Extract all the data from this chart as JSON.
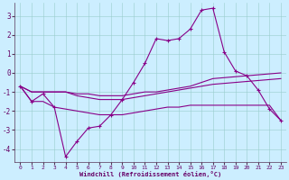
{
  "xlabel": "Windchill (Refroidissement éolien,°C)",
  "bg_color": "#cceeff",
  "line_color": "#880088",
  "grid_color": "#aaddcc",
  "xlim": [
    -0.5,
    23.5
  ],
  "ylim": [
    -4.7,
    3.7
  ],
  "yticks": [
    -4,
    -3,
    -2,
    -1,
    0,
    1,
    2,
    3
  ],
  "xticks": [
    0,
    1,
    2,
    3,
    4,
    5,
    6,
    7,
    8,
    9,
    10,
    11,
    12,
    13,
    14,
    15,
    16,
    17,
    18,
    19,
    20,
    21,
    22,
    23
  ],
  "line1_x": [
    0,
    1,
    2,
    3,
    4,
    5,
    6,
    7,
    8,
    9,
    10,
    11,
    12,
    13,
    14,
    15,
    16,
    17,
    18,
    19,
    20,
    21,
    22,
    23
  ],
  "line1_y": [
    -0.7,
    -1.5,
    -1.1,
    -1.8,
    -4.4,
    -3.6,
    -2.9,
    -2.8,
    -2.2,
    -1.4,
    -0.5,
    0.5,
    1.8,
    1.7,
    1.8,
    2.3,
    3.3,
    3.4,
    1.1,
    0.1,
    -0.15,
    -0.9,
    -1.9,
    -2.5
  ],
  "line2_x": [
    0,
    1,
    2,
    3,
    4,
    5,
    6,
    7,
    8,
    9,
    10,
    11,
    12,
    13,
    14,
    15,
    16,
    17,
    18,
    19,
    20,
    21,
    22,
    23
  ],
  "line2_y": [
    -0.7,
    -1.0,
    -1.0,
    -1.0,
    -1.0,
    -1.1,
    -1.1,
    -1.2,
    -1.2,
    -1.2,
    -1.1,
    -1.0,
    -1.0,
    -0.9,
    -0.8,
    -0.7,
    -0.5,
    -0.3,
    -0.25,
    -0.2,
    -0.15,
    -0.1,
    -0.05,
    0.0
  ],
  "line3_x": [
    0,
    1,
    2,
    3,
    4,
    5,
    6,
    7,
    8,
    9,
    10,
    11,
    12,
    13,
    14,
    15,
    16,
    17,
    18,
    19,
    20,
    21,
    22,
    23
  ],
  "line3_y": [
    -0.7,
    -1.0,
    -1.0,
    -1.0,
    -1.0,
    -1.2,
    -1.3,
    -1.4,
    -1.4,
    -1.4,
    -1.3,
    -1.2,
    -1.1,
    -1.0,
    -0.9,
    -0.8,
    -0.7,
    -0.6,
    -0.55,
    -0.5,
    -0.45,
    -0.4,
    -0.35,
    -0.3
  ],
  "line4_x": [
    0,
    1,
    2,
    3,
    4,
    5,
    6,
    7,
    8,
    9,
    10,
    11,
    12,
    13,
    14,
    15,
    16,
    17,
    18,
    19,
    20,
    21,
    22,
    23
  ],
  "line4_y": [
    -0.7,
    -1.5,
    -1.5,
    -1.8,
    -1.9,
    -2.0,
    -2.1,
    -2.2,
    -2.2,
    -2.2,
    -2.1,
    -2.0,
    -1.9,
    -1.8,
    -1.8,
    -1.7,
    -1.7,
    -1.7,
    -1.7,
    -1.7,
    -1.7,
    -1.7,
    -1.7,
    -2.5
  ]
}
